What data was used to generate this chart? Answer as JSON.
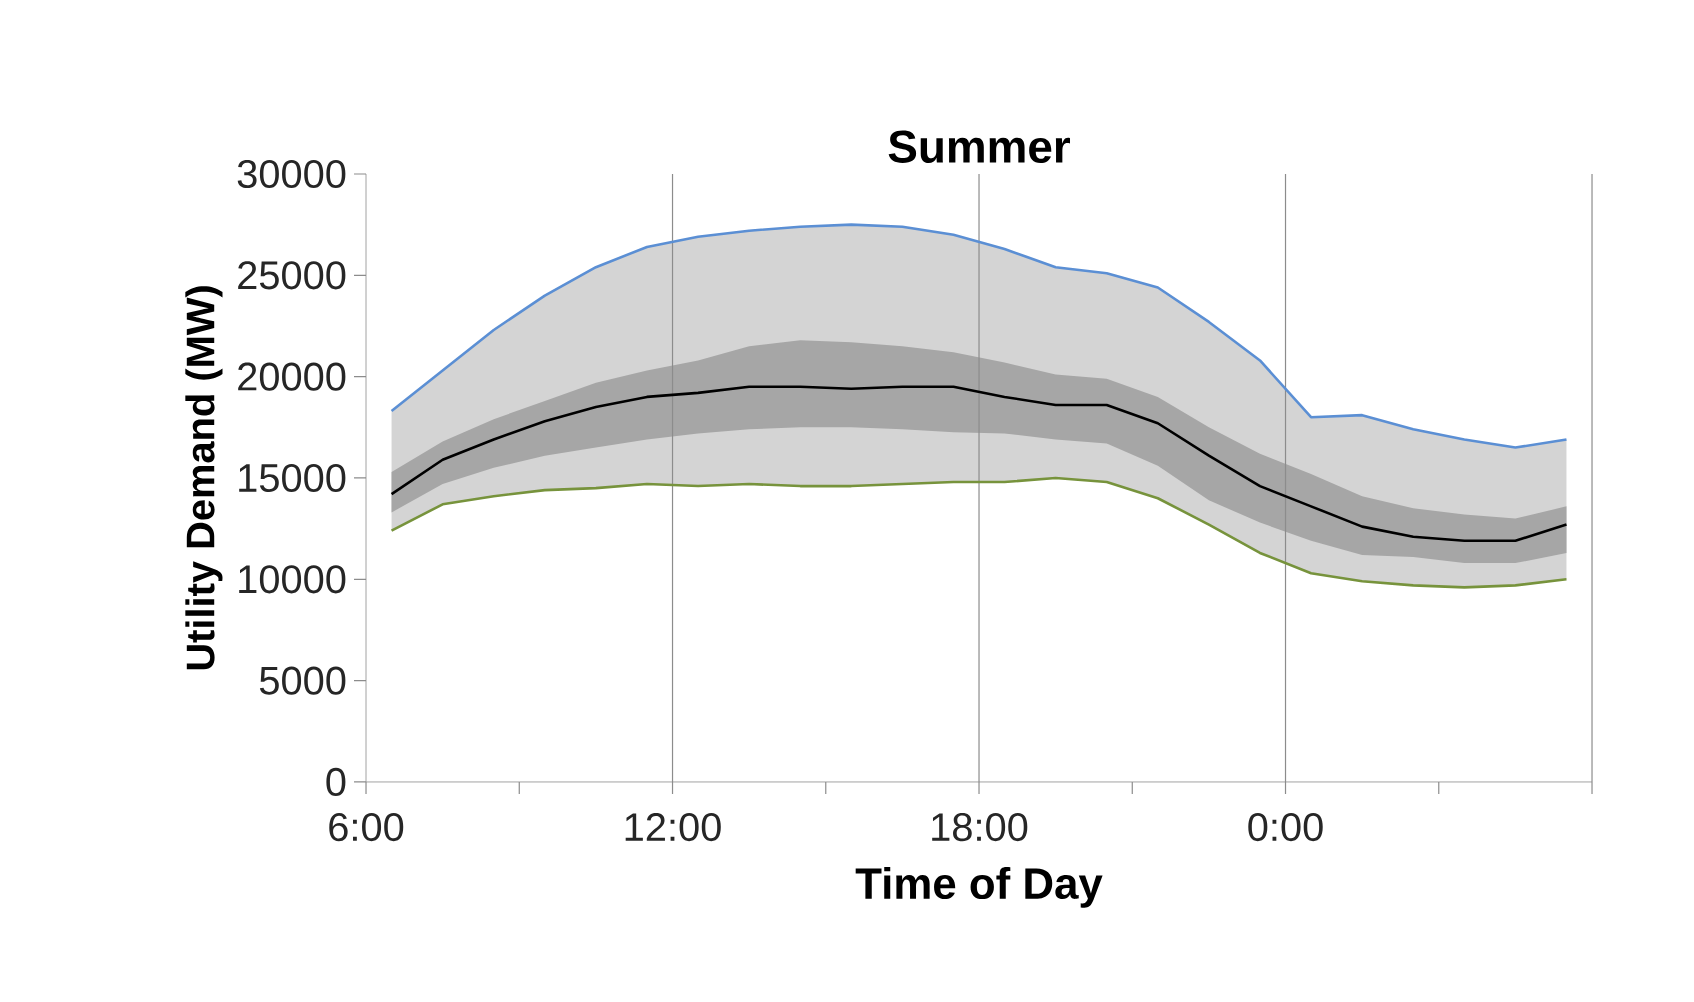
{
  "chart_data": {
    "type": "line",
    "title": "Summer",
    "xlabel": "Time of Day",
    "ylabel": "Utility Demand (MW)",
    "x": [
      6.5,
      7.5,
      8.5,
      9.5,
      10.5,
      11.5,
      12.5,
      13.5,
      14.5,
      15.5,
      16.5,
      17.5,
      18.5,
      19.5,
      20.5,
      21.5,
      22.5,
      23.5,
      24.5,
      25.5,
      26.5,
      27.5,
      28.5,
      29.5
    ],
    "series": [
      {
        "color": "#5b8fd4",
        "values": [
          18300,
          20300,
          22300,
          24000,
          25400,
          26400,
          26900,
          27200,
          27400,
          27500,
          27400,
          27000,
          26300,
          25400,
          25100,
          24400,
          22700,
          20800,
          18000,
          18100,
          17400,
          16900,
          16500,
          16900
        ],
        "lower": [
          12400,
          13700,
          14100,
          14400,
          14500,
          14700,
          14600,
          14700,
          14600,
          14600,
          14700,
          14800,
          14800,
          15000,
          14800,
          14000,
          12700,
          11300,
          10300,
          9900,
          9700,
          9600,
          9700,
          10000
        ],
        "upper": [
          18300,
          20300,
          22300,
          24000,
          25400,
          26400,
          26900,
          27200,
          27400,
          27500,
          27400,
          27000,
          26300,
          25400,
          25100,
          24400,
          22700,
          20800,
          18000,
          18100,
          17400,
          16900,
          16500,
          16900
        ]
      },
      {
        "color": "#77933c",
        "values": [
          12400,
          13700,
          14100,
          14400,
          14500,
          14700,
          14600,
          14700,
          14600,
          14600,
          14700,
          14800,
          14800,
          15000,
          14800,
          14000,
          12700,
          11300,
          10300,
          9900,
          9700,
          9600,
          9700,
          10000
        ]
      },
      {
        "color": "#000000",
        "values": [
          14200,
          15900,
          16900,
          17800,
          18500,
          19000,
          19200,
          19500,
          19500,
          19400,
          19500,
          19500,
          19000,
          18600,
          18600,
          17700,
          16100,
          14600,
          13600,
          12600,
          12100,
          11900,
          11900,
          12700
        ],
        "lower": [
          13300,
          14700,
          15500,
          16100,
          16500,
          16900,
          17200,
          17400,
          17500,
          17500,
          17400,
          17250,
          17200,
          16900,
          16700,
          15600,
          13900,
          12800,
          11900,
          11200,
          11100,
          10800,
          10800,
          11300
        ],
        "upper": [
          15300,
          16800,
          17900,
          18800,
          19700,
          20300,
          20800,
          21500,
          21800,
          21700,
          21500,
          21200,
          20700,
          20100,
          19900,
          19000,
          17500,
          16200,
          15200,
          14100,
          13500,
          13200,
          13000,
          13600
        ]
      }
    ],
    "xlim": [
      6,
      30
    ],
    "xticks": [
      {
        "value": 6,
        "label": "6:00"
      },
      {
        "value": 9,
        "label": null
      },
      {
        "value": 12,
        "label": "12:00"
      },
      {
        "value": 15,
        "label": null
      },
      {
        "value": 18,
        "label": "18:00"
      },
      {
        "value": 21,
        "label": null
      },
      {
        "value": 24,
        "label": "0:00"
      },
      {
        "value": 27,
        "label": null
      },
      {
        "value": 30,
        "label": null
      }
    ],
    "ylim": [
      0,
      30000
    ],
    "yticks": [
      0,
      5000,
      10000,
      15000,
      20000,
      25000,
      30000
    ],
    "grid": "x",
    "marker": "none",
    "line_style": "solid"
  }
}
